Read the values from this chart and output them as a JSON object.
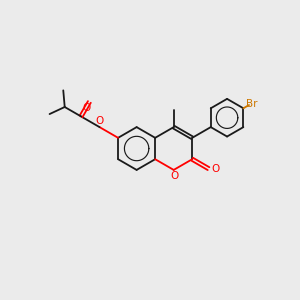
{
  "bg_color": "#ebebeb",
  "bond_color": "#1a1a1a",
  "oxygen_color": "#ff0000",
  "bromine_color": "#cc7700",
  "lw": 1.3,
  "dbo": 0.055,
  "figsize": [
    3.0,
    3.0
  ],
  "dpi": 100,
  "xlim": [
    0,
    10
  ],
  "ylim": [
    0,
    10
  ]
}
